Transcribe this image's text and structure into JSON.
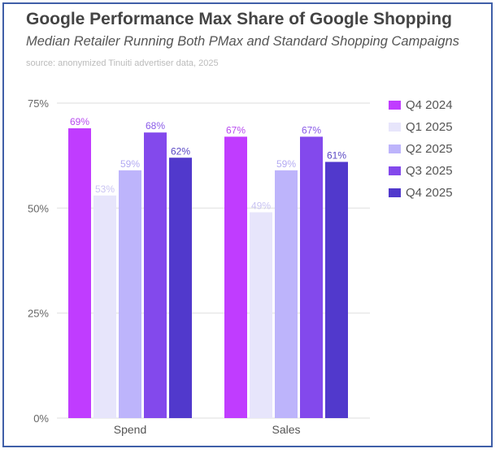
{
  "chart_data": {
    "type": "bar",
    "title": "Google Performance Max Share of Google Shopping",
    "subtitle": "Median Retailer Running Both PMax and Standard Shopping Campaigns",
    "source": "source: anonymized Tinuiti advertiser data, 2025",
    "categories": [
      "Spend",
      "Sales"
    ],
    "series": [
      {
        "name": "Q4 2024",
        "color": "#c03cff",
        "label_color": "#b94cf0",
        "values": [
          69,
          67
        ]
      },
      {
        "name": "Q1 2025",
        "color": "#e7e5fb",
        "label_color": "#c9c4f2",
        "values": [
          53,
          49
        ]
      },
      {
        "name": "Q2 2025",
        "color": "#bdb4fb",
        "label_color": "#b3aaf2",
        "values": [
          59,
          59
        ]
      },
      {
        "name": "Q3 2025",
        "color": "#8349ec",
        "label_color": "#8a5ae8",
        "values": [
          68,
          67
        ]
      },
      {
        "name": "Q4 2025",
        "color": "#5139cc",
        "label_color": "#5a48c4",
        "values": [
          62,
          61
        ]
      }
    ],
    "yticks": [
      "0%",
      "25%",
      "50%",
      "75%"
    ],
    "ytick_values": [
      0,
      25,
      50,
      75
    ],
    "ylim": [
      0,
      75
    ],
    "grid": true,
    "legend_position": "right"
  }
}
